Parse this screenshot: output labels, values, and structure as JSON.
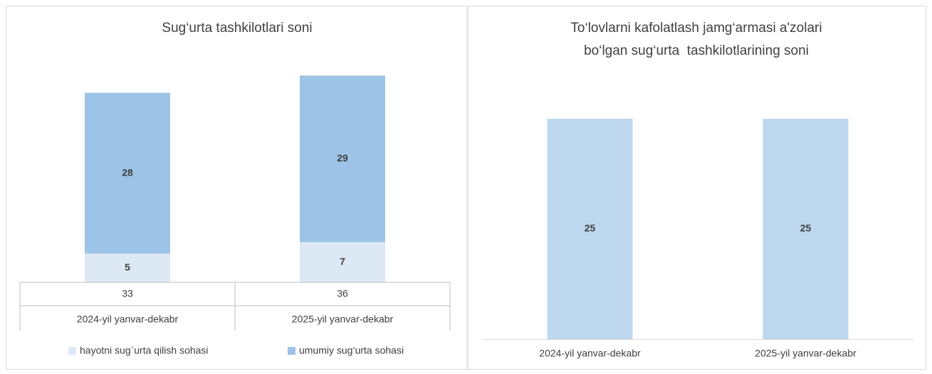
{
  "chart_data": [
    {
      "type": "stacked_bar",
      "title": "Sug‘urta tashkilotlari soni",
      "categories": [
        "2024-yil yanvar-dekabr",
        "2025-yil yanvar-dekabr"
      ],
      "series": [
        {
          "name": "hayotni sug`urta qilish sohasi",
          "color": "#dde8f5",
          "values": [
            5,
            7
          ]
        },
        {
          "name": "umumiy sug‘urta sohasi",
          "color": "#9dc3e6",
          "values": [
            28,
            29
          ]
        }
      ],
      "totals": [
        33,
        36
      ],
      "ylim": [
        0,
        40
      ]
    },
    {
      "type": "bar",
      "title": [
        "To‘lovlarni kafolatlash jamg‘armasi a'zolari",
        "bo‘lgan sug‘urta  tashkilotlarining soni"
      ],
      "categories": [
        "2024-yil yanvar-dekabr",
        "2025-yil yanvar-dekabr"
      ],
      "values": [
        25,
        25
      ],
      "color": "#bdd7ee",
      "ylim": [
        0,
        30
      ]
    }
  ]
}
